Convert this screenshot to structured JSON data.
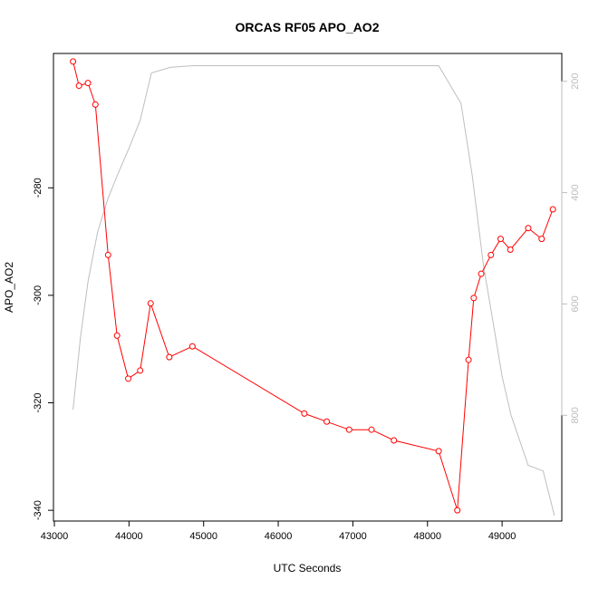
{
  "chart_data": {
    "type": "line",
    "title": "ORCAS RF05 APO_AO2",
    "xlabel": "UTC Seconds",
    "ylabel": "APO_AO2",
    "xlim": [
      43000,
      49800
    ],
    "ylim": [
      -342,
      -255
    ],
    "y2lim": [
      990,
      150
    ],
    "xticks": [
      43000,
      44000,
      45000,
      46000,
      47000,
      48000,
      49000
    ],
    "yticks": [
      -340,
      -320,
      -300,
      -280
    ],
    "y2ticks": [
      200,
      400,
      600,
      800
    ],
    "grid": false,
    "legend": "none",
    "colors": {
      "primary": "#ff0000",
      "secondary": "#bebebe"
    },
    "series": [
      {
        "axis": "left",
        "style": "line-markers",
        "x": [
          43250,
          43330,
          43450,
          43550,
          43720,
          43840,
          43990,
          44150,
          44290,
          44540,
          44850,
          46350,
          46650,
          46950,
          47250,
          47550,
          48150,
          48400,
          48550,
          48620,
          48720,
          48850,
          48980,
          49110,
          49350,
          49530,
          49680
        ],
        "y": [
          -256.5,
          -261,
          -260.5,
          -264.5,
          -292.5,
          -307.5,
          -315.5,
          -314,
          -301.5,
          -311.5,
          -309.5,
          -322,
          -323.5,
          -325,
          -325,
          -327,
          -329,
          -340,
          -312,
          -300.5,
          -296,
          -292.5,
          -289.5,
          -291.5,
          -287.5,
          -289.5,
          -284
        ]
      },
      {
        "axis": "right",
        "style": "line",
        "x": [
          43250,
          43350,
          43450,
          43580,
          43720,
          43840,
          44000,
          44150,
          44300,
          44550,
          44850,
          45500,
          46500,
          47500,
          48150,
          48450,
          48600,
          48750,
          48900,
          49000,
          49120,
          49350,
          49550,
          49700
        ],
        "y": [
          790,
          660,
          560,
          470,
          410,
          370,
          320,
          270,
          185,
          175,
          172,
          172,
          172,
          172,
          172,
          240,
          370,
          530,
          650,
          730,
          800,
          890,
          900,
          980
        ]
      }
    ]
  }
}
